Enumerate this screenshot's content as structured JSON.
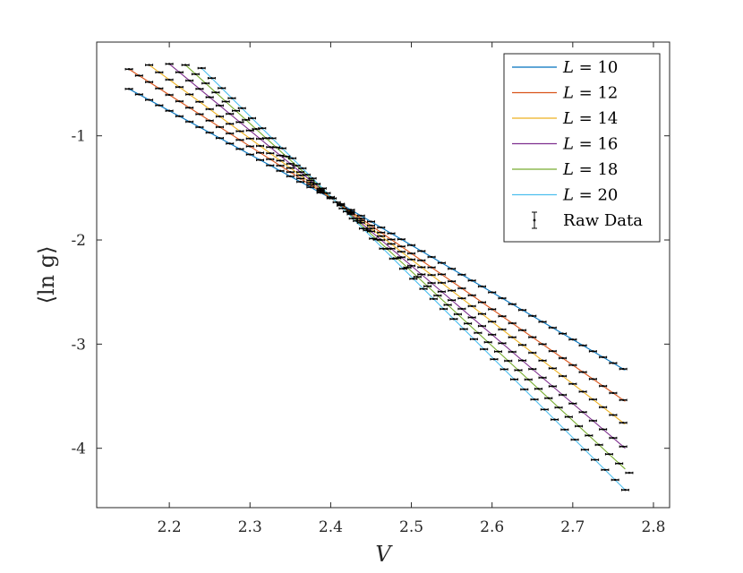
{
  "chart_data": {
    "type": "line",
    "title": "",
    "xlabel": "V",
    "ylabel": "⟨ln g⟩",
    "xlim": [
      2.11,
      2.82
    ],
    "ylim": [
      -4.57,
      -0.1
    ],
    "xticks": [
      2.2,
      2.3,
      2.4,
      2.5,
      2.6,
      2.7,
      2.8
    ],
    "yticks": [
      -1,
      -2,
      -3,
      -4
    ],
    "xtick_labels": [
      "2.2",
      "2.3",
      "2.4",
      "2.5",
      "2.6",
      "2.7",
      "2.8"
    ],
    "ytick_labels": [
      "-1",
      "-2",
      "-3",
      "-4"
    ],
    "grid": false,
    "legend_position": "top-right",
    "crossing_point": {
      "x": 2.405,
      "y": -1.62
    },
    "series": [
      {
        "name": "L = 10",
        "legend_label": "L",
        "legend_value": "= 10",
        "color": "#0072BD",
        "x_start": 2.15,
        "x_end": 2.765,
        "y_start": -0.55,
        "y_end": -3.25,
        "marker_step": 0.0125
      },
      {
        "name": "L = 12",
        "legend_label": "L",
        "legend_value": "= 12",
        "color": "#D95319",
        "x_start": 2.15,
        "x_end": 2.765,
        "y_start": -0.36,
        "y_end": -3.55,
        "marker_step": 0.0125
      },
      {
        "name": "L = 14",
        "legend_label": "L",
        "legend_value": "= 14",
        "color": "#EDB120",
        "x_start": 2.175,
        "x_end": 2.765,
        "y_start": -0.32,
        "y_end": -3.77,
        "marker_step": 0.0125
      },
      {
        "name": "L = 16",
        "legend_label": "L",
        "legend_value": "= 16",
        "color": "#7E2F8E",
        "x_start": 2.2,
        "x_end": 2.765,
        "y_start": -0.31,
        "y_end": -4.0,
        "marker_step": 0.0125
      },
      {
        "name": "L = 18",
        "legend_label": "L",
        "legend_value": "= 18",
        "color": "#77AC30",
        "x_start": 2.22,
        "x_end": 2.765,
        "y_start": -0.32,
        "y_end": -4.2,
        "marker_step": 0.0125
      },
      {
        "name": "L = 20",
        "legend_label": "L",
        "legend_value": "= 20",
        "color": "#4DBEEE",
        "x_start": 2.24,
        "x_end": 2.765,
        "y_start": -0.35,
        "y_end": -4.4,
        "marker_step": 0.0125
      }
    ],
    "raw_data_legend": "Raw Data",
    "raw_data_color": "#000000"
  }
}
